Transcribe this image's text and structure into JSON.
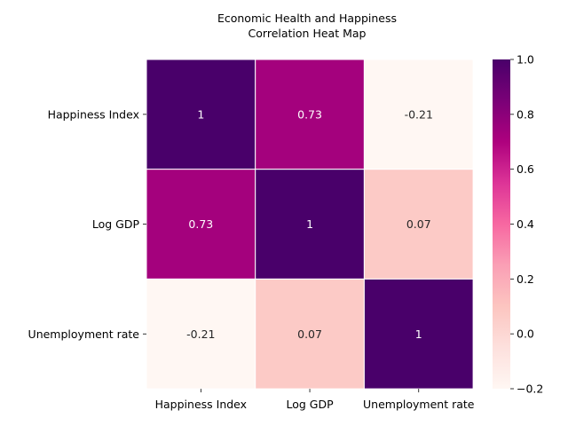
{
  "chart_data": {
    "type": "heatmap",
    "title_line1": "Economic Health and Happiness",
    "title_line2": "Correlation Heat Map",
    "xlabel": "",
    "ylabel": "",
    "rows": [
      "Happiness Index",
      "Log GDP",
      "Unemployment rate"
    ],
    "columns": [
      "Happiness Index",
      "Log GDP",
      "Unemployment rate"
    ],
    "values": [
      [
        1,
        0.73,
        -0.21
      ],
      [
        0.73,
        1,
        0.07
      ],
      [
        -0.21,
        0.07,
        1
      ]
    ],
    "cell_labels": [
      [
        "1",
        "0.73",
        "-0.21"
      ],
      [
        "0.73",
        "1",
        "0.07"
      ],
      [
        "-0.21",
        "0.07",
        "1"
      ]
    ],
    "colorbar": {
      "vmin": -0.2,
      "vmax": 1.0,
      "ticks": [
        "1.0",
        "0.8",
        "0.6",
        "0.4",
        "0.2",
        "0.0",
        "−0.2"
      ],
      "tick_values": [
        1.0,
        0.8,
        0.6,
        0.4,
        0.2,
        0.0,
        -0.2
      ],
      "colormap": "RdPu",
      "colors": [
        "#fff7f3",
        "#fde0dd",
        "#fcc5c0",
        "#fa9fb5",
        "#f768a1",
        "#dd3497",
        "#ae017e",
        "#7a0177",
        "#49006a"
      ]
    },
    "grid": true
  }
}
